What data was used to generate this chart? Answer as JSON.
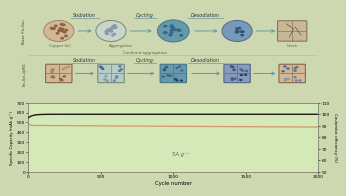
{
  "fig_bg": "#cdd8b0",
  "plot_bg": "#d4e8b8",
  "schematic_bg": "#ddeec8",
  "title_top": "Bare Fe₂Se₄",
  "title_bottom": "Fe₂Se₄@NC",
  "sodiation_label": "Sodiation",
  "cycling_label": "Cycling",
  "desodiation_label": "Desodiation",
  "copper_foil": "Copper foil",
  "aggregation": "Aggregation",
  "crack": "Crack",
  "confined_aggregation": "Confined aggregation",
  "annotation": "5A g⁻¹",
  "xlabel": "Cycle number",
  "ylabel_left": "Specific Capacity (mAh g⁻¹)",
  "ylabel_right": "Coulombic efficiency (%)",
  "xlim": [
    0,
    2000
  ],
  "ylim_left": [
    0,
    700
  ],
  "ylim_right": [
    50,
    110
  ],
  "xticks": [
    0,
    500,
    1000,
    1500,
    2000
  ],
  "yticks_left": [
    0,
    100,
    200,
    300,
    400,
    500,
    600,
    700
  ],
  "yticks_right": [
    50,
    60,
    70,
    80,
    90,
    100,
    110
  ],
  "capacity_start": 490,
  "capacity_end": 420,
  "ce_start": 95,
  "ce_end": 100,
  "line_color_capacity": "#d4956a",
  "line_color_ce": "#1a1a1a",
  "arrow_color": "#6699aa",
  "circle_edge_top": "#8aaa88",
  "circle_fill_1": "#d4b896",
  "circle_fill_2": "#b8cccc",
  "circle_fill_3": "#5588aa",
  "circle_fill_4": "#4477aa",
  "box_edge": "#886644",
  "box_fill": "#d4b896",
  "particle_color_light": "#9ab8c8",
  "particle_color_dark": "#446688",
  "text_color_label": "#333333",
  "text_color_sublabel": "#666644",
  "underline_color": "#6699aa"
}
